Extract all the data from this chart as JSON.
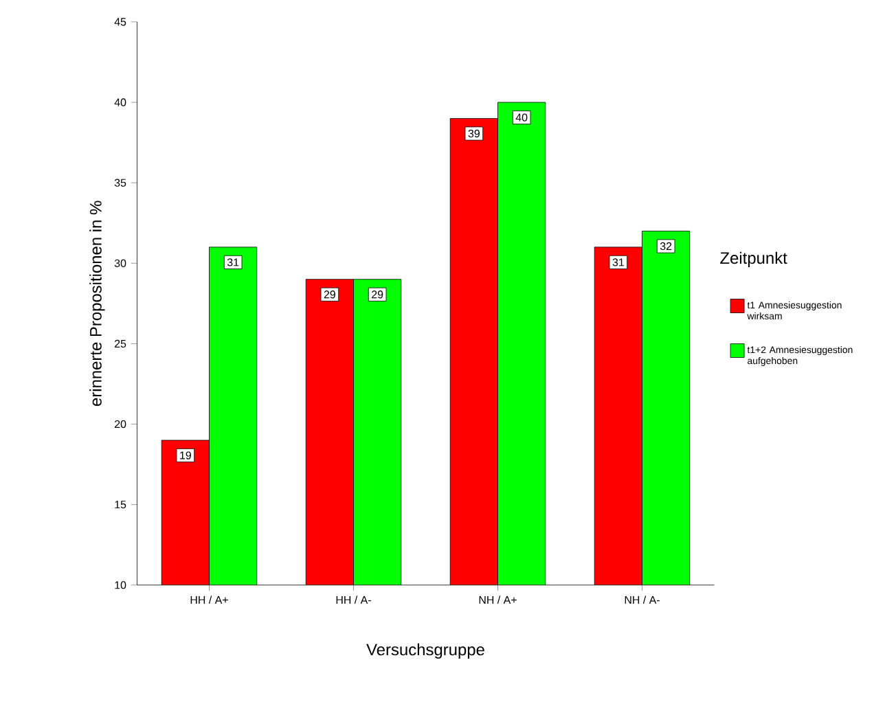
{
  "chart_data": {
    "type": "bar",
    "xlabel": "Versuchsgruppe",
    "ylabel": "erinnerte Propositionen in %",
    "legend_title": "Zeitpunkt",
    "categories": [
      "HH / A+",
      "HH / A-",
      "NH / A+",
      "NH / A-"
    ],
    "series": [
      {
        "name": "t1 Amnesiesuggestion wirksam",
        "color": "#ff0000",
        "values": [
          19,
          29,
          39,
          31
        ]
      },
      {
        "name": "t1+2 Amnesiesuggestion aufgehoben",
        "color": "#00ff00",
        "values": [
          31,
          29,
          40,
          32
        ]
      }
    ],
    "ylim": [
      10,
      45
    ],
    "yticks": [
      10,
      15,
      20,
      25,
      30,
      35,
      40,
      45
    ],
    "data_labels": true,
    "legend": "right",
    "grid": false
  }
}
